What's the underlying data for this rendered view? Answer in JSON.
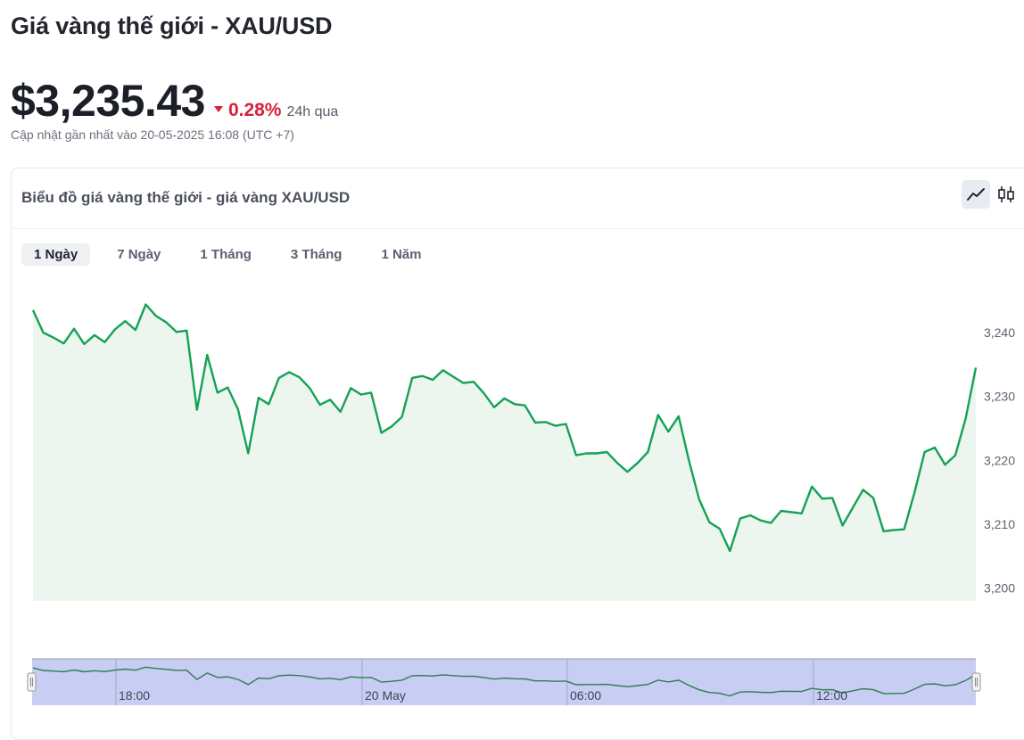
{
  "header": {
    "title": "Giá vàng thế giới - XAU/USD",
    "price": "$3,235.43",
    "change_pct": "0.28%",
    "change_period": "24h qua",
    "updated": "Cập nhật gần nhất vào 20-05-2025 16:08 (UTC +7)"
  },
  "card": {
    "title": "Biểu đồ giá vàng thế giới - giá vàng XAU/USD",
    "chart_types": [
      {
        "icon": "line-chart-icon",
        "active": true
      },
      {
        "icon": "candlestick-icon",
        "active": false
      }
    ],
    "ranges": [
      "1 Ngày",
      "7 Ngày",
      "1 Tháng",
      "3 Tháng",
      "1 Năm"
    ],
    "active_range": "1 Ngày"
  },
  "colors": {
    "line": "#16a155",
    "area": "#ecf6ef",
    "down": "#d9213b",
    "navigator_fill": "#c7cdf3",
    "navigator_line": "#2f7d4f"
  },
  "chart_data": {
    "type": "area",
    "ylim": [
      3198,
      3246
    ],
    "yticks": [
      3200,
      3210,
      3220,
      3230,
      3240
    ],
    "ytick_labels": [
      "3,200",
      "3,210",
      "3,220",
      "3,230",
      "3,240"
    ],
    "navigator_labels": [
      "18:00",
      "20 May",
      "06:00",
      "12:00"
    ],
    "grid": false,
    "series": [
      {
        "values": [
          3243.5,
          3240.0,
          3239.2,
          3238.3,
          3240.6,
          3238.2,
          3239.6,
          3238.5,
          3240.5,
          3241.8,
          3240.4,
          3244.4,
          3242.6,
          3241.6,
          3240.1,
          3240.3,
          3227.9,
          3236.5,
          3230.6,
          3231.4,
          3228.0,
          3221.1,
          3229.8,
          3228.8,
          3232.9,
          3233.8,
          3233.0,
          3231.3,
          3228.7,
          3229.5,
          3227.6,
          3231.3,
          3230.3,
          3230.6,
          3224.3,
          3225.3,
          3226.8,
          3232.9,
          3233.2,
          3232.6,
          3234.1,
          3233.1,
          3232.1,
          3232.3,
          3230.5,
          3228.3,
          3229.7,
          3228.8,
          3228.6,
          3225.9,
          3226.0,
          3225.4,
          3225.7,
          3220.8,
          3221.1,
          3221.1,
          3221.3,
          3219.6,
          3218.2,
          3219.6,
          3221.3,
          3227.1,
          3224.5,
          3226.9,
          3220.0,
          3213.9,
          3210.3,
          3209.3,
          3205.8,
          3210.9,
          3211.4,
          3210.6,
          3210.2,
          3212.1,
          3211.9,
          3211.7,
          3215.9,
          3214.0,
          3214.1,
          3209.8,
          3212.6,
          3215.4,
          3214.1,
          3208.9,
          3209.1,
          3209.2,
          3214.9,
          3221.3,
          3222.0,
          3219.3,
          3220.8,
          3226.5,
          3234.5
        ]
      }
    ]
  }
}
